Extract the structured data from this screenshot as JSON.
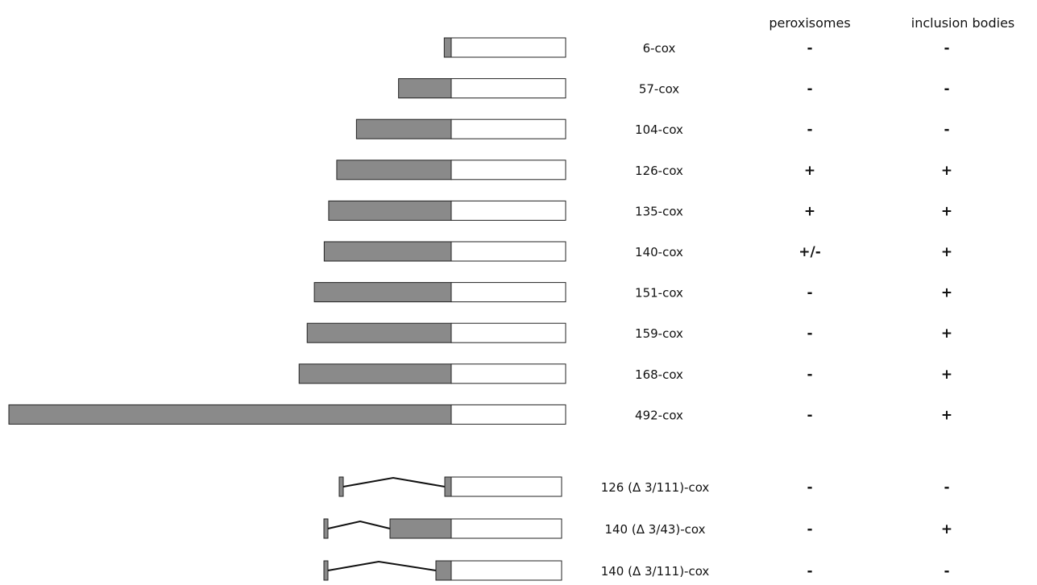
{
  "headers": {
    "peroxisomes": "peroxisomes",
    "inclusion_bodies": "inclusion bodies"
  },
  "colors": {
    "fusion_fill": "#8a8a8a",
    "cox_fill": "#ffffff",
    "outline": "#222222"
  },
  "constructs": [
    {
      "label": "6-cox",
      "residues": 6,
      "peroxisomes": "-",
      "inclusion_bodies": "-"
    },
    {
      "label": "57-cox",
      "residues": 57,
      "peroxisomes": "-",
      "inclusion_bodies": "-"
    },
    {
      "label": "104-cox",
      "residues": 104,
      "peroxisomes": "-",
      "inclusion_bodies": "-"
    },
    {
      "label": "126-cox",
      "residues": 126,
      "peroxisomes": "+",
      "inclusion_bodies": "+"
    },
    {
      "label": "135-cox",
      "residues": 135,
      "peroxisomes": "+",
      "inclusion_bodies": "+"
    },
    {
      "label": "140-cox",
      "residues": 140,
      "peroxisomes": "+/-",
      "inclusion_bodies": "+"
    },
    {
      "label": "151-cox",
      "residues": 151,
      "peroxisomes": "-",
      "inclusion_bodies": "+"
    },
    {
      "label": "159-cox",
      "residues": 159,
      "peroxisomes": "-",
      "inclusion_bodies": "+"
    },
    {
      "label": "168-cox",
      "residues": 168,
      "peroxisomes": "-",
      "inclusion_bodies": "+"
    },
    {
      "label": "492-cox",
      "residues": 492,
      "peroxisomes": "-",
      "inclusion_bodies": "+"
    }
  ],
  "deletions": [
    {
      "label": "126 (Δ 3/111)-cox",
      "residues": 126,
      "deleted_from": 3,
      "deleted_to": 111,
      "peroxisomes": "-",
      "inclusion_bodies": "-"
    },
    {
      "label": "140 (Δ 3/43)-cox",
      "residues": 140,
      "deleted_from": 3,
      "deleted_to": 43,
      "peroxisomes": "-",
      "inclusion_bodies": "+"
    },
    {
      "label": "140 (Δ 3/111)-cox",
      "residues": 140,
      "deleted_from": 3,
      "deleted_to": 111,
      "peroxisomes": "-",
      "inclusion_bodies": "-"
    }
  ]
}
